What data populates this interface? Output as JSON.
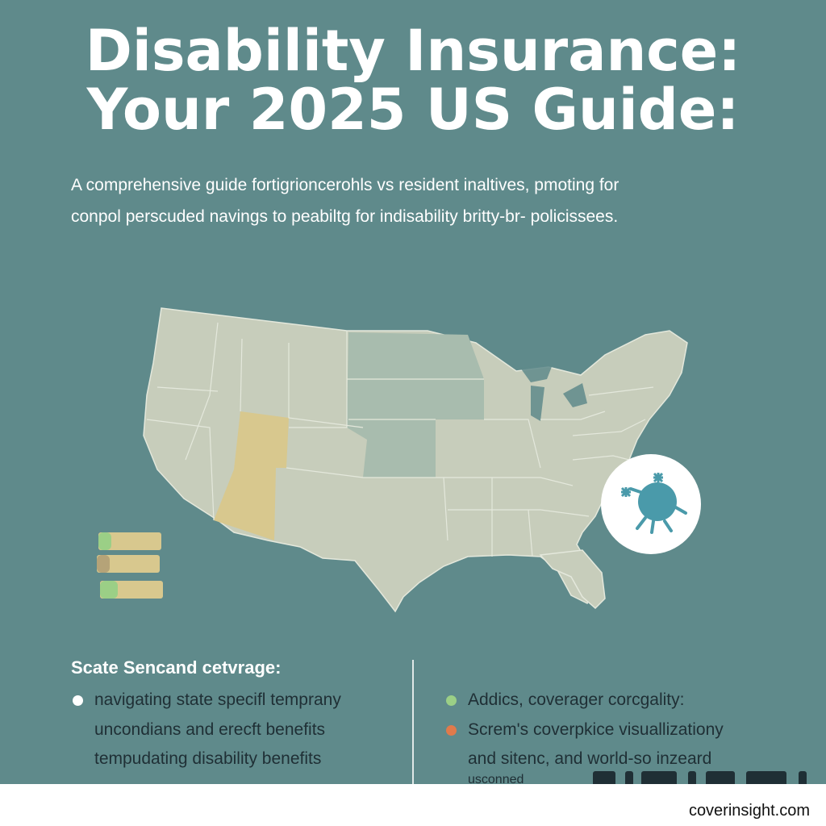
{
  "header": {
    "title_line1": "Disability Insurance:",
    "title_line2": "Your 2025 US Guide:"
  },
  "intro": {
    "line1": "A comprehensive guide fortigrioncerohls vs resident inaltives, pmoting for",
    "line2": "conpol perscuded navings to peabiltg for indisability britty-br- policissees."
  },
  "section": {
    "title": "Scate Sencand cetvrage:",
    "left_items": [
      "navigating state specifl temprany",
      "uncondians and erecft benefits",
      "tempudating disability benefits"
    ],
    "right_items": [
      "Addics, coverager corcgality:",
      "Screm's coverpkice visuallizationy",
      "and sitenc, and world-so inzeard",
      "usconned"
    ]
  },
  "colors": {
    "background": "#5f8a8b",
    "map_land": "#c7cdbb",
    "highlight_yellow": "#d8c88e",
    "highlight_green": "#a8bcae",
    "bullet_green": "#9bcf86",
    "bullet_orange": "#e07a4b",
    "icon_teal": "#4a9aaa"
  },
  "footer": {
    "brand": "coverinsight.com"
  }
}
